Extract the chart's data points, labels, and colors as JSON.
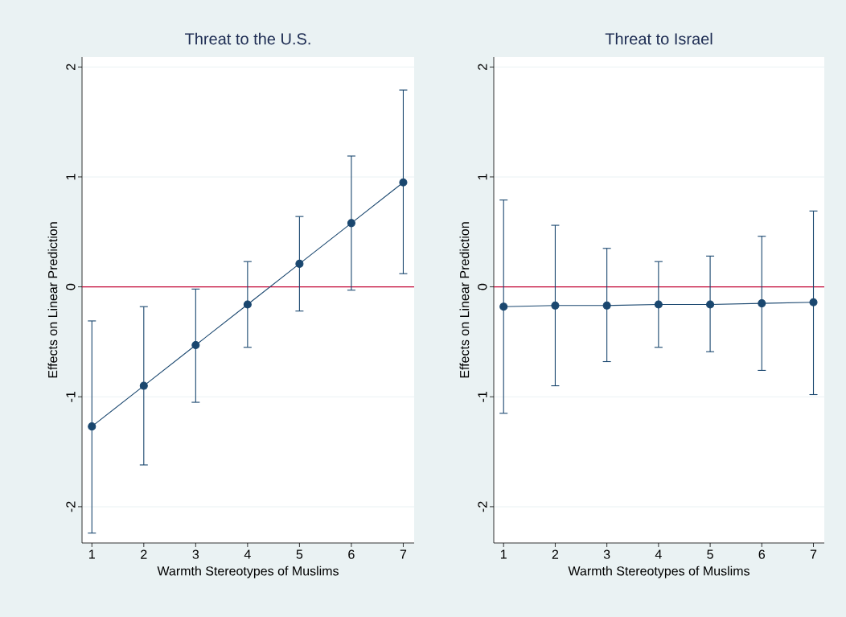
{
  "chart_data": [
    {
      "type": "line",
      "title": "Threat to the U.S.",
      "xlabel": "Warmth Stereotypes of Muslims",
      "ylabel": "Effects on Linear Prediction",
      "x": [
        1,
        2,
        3,
        4,
        5,
        6,
        7
      ],
      "values": [
        -1.27,
        -0.9,
        -0.53,
        -0.16,
        0.21,
        0.58,
        0.95
      ],
      "errors": [
        [
          -2.24,
          -0.31
        ],
        [
          -1.62,
          -0.18
        ],
        [
          -1.05,
          -0.02
        ],
        [
          -0.55,
          0.23
        ],
        [
          -0.22,
          0.64
        ],
        [
          -0.03,
          1.19
        ],
        [
          0.12,
          1.79
        ]
      ],
      "color": "#1a476f",
      "marker": "circle",
      "line_style": "solid",
      "xlim": [
        0.81,
        7.21
      ],
      "ylim": [
        -2.33,
        2.09
      ],
      "xticks": [
        1,
        2,
        3,
        4,
        5,
        6,
        7
      ],
      "yticks": [
        -2,
        -1,
        0,
        1,
        2
      ],
      "grid": "y",
      "ref_lines": [
        {
          "axis": "y",
          "value": 0,
          "color": "#c10534"
        }
      ]
    },
    {
      "type": "line",
      "title": "Threat to Israel",
      "xlabel": "Warmth Stereotypes of Muslims",
      "ylabel": "Effects on Linear Prediction",
      "x": [
        1,
        2,
        3,
        4,
        5,
        6,
        7
      ],
      "values": [
        -0.18,
        -0.17,
        -0.17,
        -0.16,
        -0.16,
        -0.15,
        -0.14
      ],
      "errors": [
        [
          -1.15,
          0.79
        ],
        [
          -0.9,
          0.56
        ],
        [
          -0.68,
          0.35
        ],
        [
          -0.55,
          0.23
        ],
        [
          -0.59,
          0.28
        ],
        [
          -0.76,
          0.46
        ],
        [
          -0.98,
          0.69
        ]
      ],
      "color": "#1a476f",
      "marker": "circle",
      "line_style": "solid",
      "xlim": [
        0.81,
        7.21
      ],
      "ylim": [
        -2.33,
        2.09
      ],
      "xticks": [
        1,
        2,
        3,
        4,
        5,
        6,
        7
      ],
      "yticks": [
        -2,
        -1,
        0,
        1,
        2
      ],
      "grid": "y",
      "ref_lines": [
        {
          "axis": "y",
          "value": 0,
          "color": "#c10534"
        }
      ]
    }
  ]
}
